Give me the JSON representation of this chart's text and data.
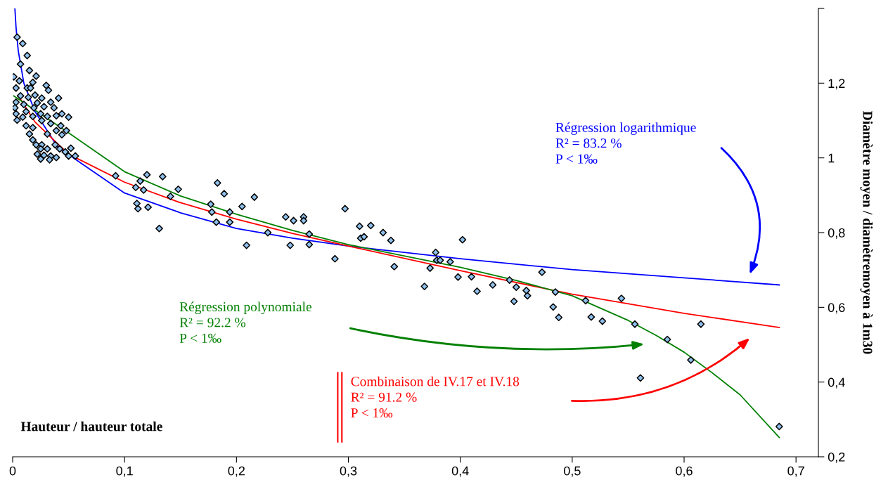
{
  "chart_data": {
    "type": "scatter",
    "xlabel": "Hauteur / hauteur totale",
    "ylabel": "Diamètre moyen / diamètremoyen à 1m30",
    "xlim": [
      0,
      0.72
    ],
    "ylim": [
      0.2,
      1.4
    ],
    "xticks": [
      0,
      {
        "value": 0.1,
        "label": "0,1"
      },
      {
        "value": 0.2,
        "label": "0,2"
      },
      {
        "value": 0.3,
        "label": "0,3"
      },
      {
        "value": 0.4,
        "label": "0,4"
      },
      {
        "value": 0.5,
        "label": "0,5"
      },
      {
        "value": 0.6,
        "label": "0,6"
      },
      {
        "value": 0.7,
        "label": "0,7"
      }
    ],
    "yticks": [
      {
        "value": 0.2,
        "label": "0,2"
      },
      {
        "value": 0.4,
        "label": "0,4"
      },
      {
        "value": 0.6,
        "label": "0,6"
      },
      {
        "value": 0.8,
        "label": "0,8"
      },
      1,
      {
        "value": 1.2,
        "label": "1,2"
      },
      {
        "value": 1.4,
        "label": null
      }
    ],
    "grid": false,
    "series": [
      {
        "color": "#8fc0ec",
        "marker": "diamond",
        "x": [
          0.004,
          0.009,
          0.013,
          0.007,
          0.015,
          0.001,
          0.021,
          0.006,
          0.018,
          0.03,
          0.032,
          0.003,
          0.013,
          0.016,
          0.007,
          0.026,
          0.041,
          0.02,
          0.014,
          0.034,
          0.003,
          0.022,
          0.01,
          0.028,
          0.037,
          0.002,
          0.019,
          0.012,
          0.025,
          0.044,
          0.003,
          0.018,
          0.039,
          0.031,
          0.009,
          0.05,
          0.004,
          0.026,
          0.034,
          0.012,
          0.043,
          0.018,
          0.039,
          0.048,
          0.015,
          0.031,
          0.044,
          0.018,
          0.021,
          0.026,
          0.038,
          0.052,
          0.042,
          0.025,
          0.031,
          0.047,
          0.056,
          0.05,
          0.022,
          0.028,
          0.034,
          0.039,
          0.025,
          0.033,
          0.092,
          0.114,
          0.12,
          0.11,
          0.117,
          0.134,
          0.148,
          0.111,
          0.112,
          0.121,
          0.131,
          0.141,
          0.183,
          0.189,
          0.177,
          0.178,
          0.194,
          0.205,
          0.216,
          0.182,
          0.194,
          0.209,
          0.228,
          0.244,
          0.251,
          0.26,
          0.26,
          0.265,
          0.248,
          0.265,
          0.288,
          0.297,
          0.31,
          0.311,
          0.314,
          0.32,
          0.331,
          0.338,
          0.341,
          0.402,
          0.378,
          0.379,
          0.382,
          0.391,
          0.373,
          0.368,
          0.398,
          0.41,
          0.415,
          0.429,
          0.444,
          0.448,
          0.45,
          0.459,
          0.46,
          0.473,
          0.485,
          0.483,
          0.488,
          0.512,
          0.517,
          0.527,
          0.544,
          0.556,
          0.585,
          0.561,
          0.615,
          0.606,
          0.685
        ],
        "values": [
          1.323,
          1.306,
          1.274,
          1.251,
          1.234,
          1.217,
          1.219,
          1.206,
          1.202,
          1.194,
          1.181,
          1.187,
          1.187,
          1.187,
          1.166,
          1.16,
          1.16,
          1.168,
          1.162,
          1.149,
          1.149,
          1.147,
          1.143,
          1.137,
          1.134,
          1.134,
          1.134,
          1.124,
          1.118,
          1.118,
          1.118,
          1.111,
          1.113,
          1.111,
          1.109,
          1.109,
          1.101,
          1.1,
          1.092,
          1.086,
          1.086,
          1.081,
          1.073,
          1.073,
          1.064,
          1.064,
          1.062,
          1.048,
          1.035,
          1.035,
          1.035,
          1.026,
          1.024,
          1.024,
          1.024,
          1.016,
          1.005,
          1.005,
          1.01,
          1.007,
          1.005,
          1.001,
          0.997,
          0.995,
          0.952,
          0.938,
          0.955,
          0.921,
          0.914,
          0.95,
          0.916,
          0.878,
          0.864,
          0.868,
          0.811,
          0.897,
          0.933,
          0.904,
          0.876,
          0.855,
          0.855,
          0.87,
          0.895,
          0.828,
          0.828,
          0.766,
          0.8,
          0.842,
          0.832,
          0.842,
          0.832,
          0.796,
          0.766,
          0.768,
          0.73,
          0.864,
          0.817,
          0.785,
          0.789,
          0.819,
          0.8,
          0.779,
          0.709,
          0.781,
          0.747,
          0.726,
          0.726,
          0.722,
          0.705,
          0.656,
          0.681,
          0.682,
          0.643,
          0.66,
          0.673,
          0.616,
          0.654,
          0.645,
          0.631,
          0.694,
          0.641,
          0.601,
          0.573,
          0.618,
          0.574,
          0.563,
          0.624,
          0.555,
          0.514,
          0.411,
          0.555,
          0.459,
          0.281
        ]
      },
      {
        "type": "line",
        "color": "#0000ff",
        "x": [
          0.002,
          0.003,
          0.005,
          0.01,
          0.02,
          0.04,
          0.06,
          0.1,
          0.15,
          0.2,
          0.25,
          0.3,
          0.4,
          0.5,
          0.6,
          0.685
        ],
        "values": [
          1.4,
          1.35,
          1.287,
          1.2,
          1.124,
          1.03,
          0.988,
          0.906,
          0.853,
          0.811,
          0.785,
          0.764,
          0.73,
          0.701,
          0.679,
          0.66
        ]
      },
      {
        "type": "line",
        "color": "#ff0000",
        "x": [
          0.006,
          0.02,
          0.05,
          0.1,
          0.15,
          0.2,
          0.25,
          0.3,
          0.4,
          0.5,
          0.6,
          0.685
        ],
        "values": [
          1.162,
          1.096,
          1.01,
          0.935,
          0.88,
          0.836,
          0.798,
          0.764,
          0.698,
          0.635,
          0.584,
          0.546
        ]
      },
      {
        "type": "line",
        "color": "#008000",
        "x": [
          0.001,
          0.05,
          0.1,
          0.15,
          0.2,
          0.25,
          0.3,
          0.4,
          0.45,
          0.5,
          0.55,
          0.575,
          0.6,
          0.625,
          0.65,
          0.685
        ],
        "values": [
          1.166,
          1.067,
          0.963,
          0.898,
          0.849,
          0.806,
          0.768,
          0.707,
          0.672,
          0.631,
          0.565,
          0.525,
          0.48,
          0.425,
          0.366,
          0.252
        ]
      }
    ],
    "annotations": [
      "Régression logarithmique\nR² = 83.2 %\nP < 1‰",
      "Régression polynomiale\nR² = 92.2 %\nP < 1‰",
      "Combinaison de IV.17 et IV.18\nR² = 91.2 %\nP < 1‰"
    ]
  }
}
